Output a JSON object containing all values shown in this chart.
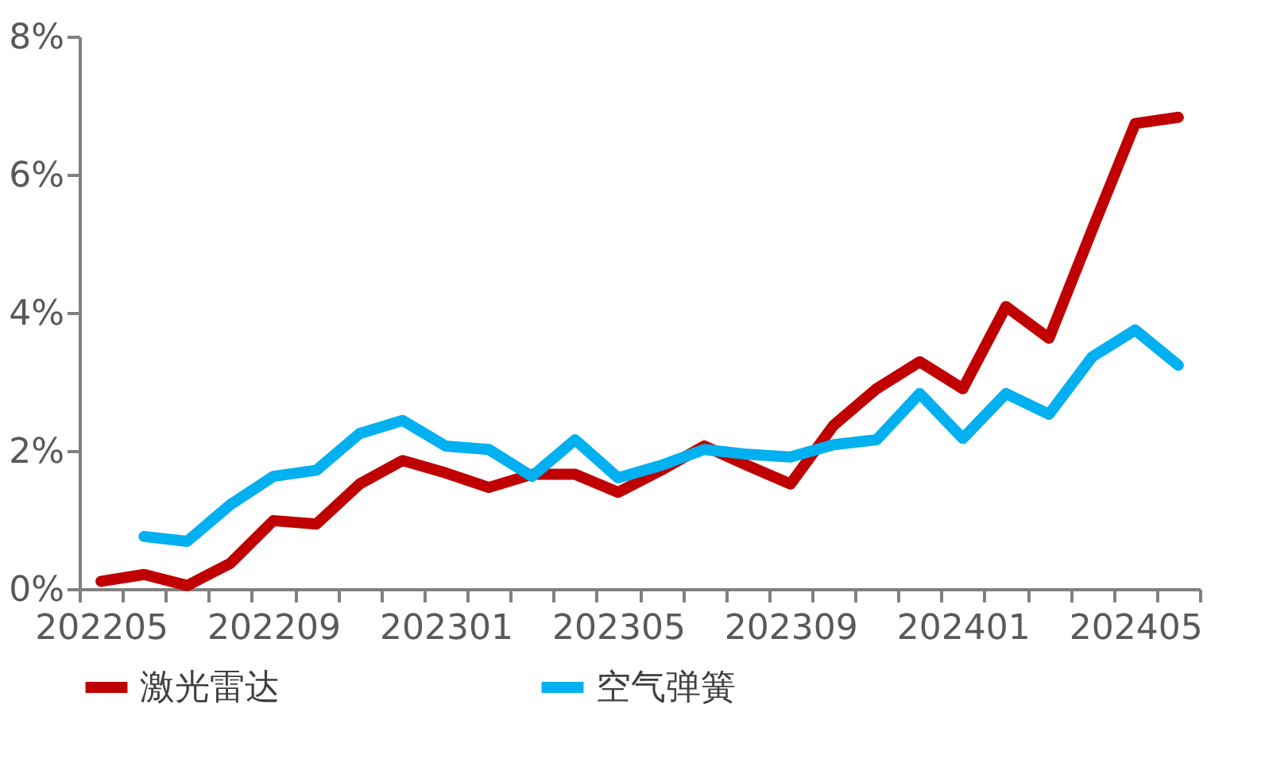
{
  "chart_data": {
    "type": "line",
    "categories": [
      "202205",
      null,
      null,
      null,
      "202209",
      null,
      null,
      null,
      "202301",
      null,
      null,
      null,
      "202305",
      null,
      null,
      null,
      "202309",
      null,
      null,
      null,
      "202401",
      null,
      null,
      null,
      "202405",
      null
    ],
    "series": [
      {
        "name": "激光雷达",
        "color": "#c00000",
        "values": [
          0.11,
          0.21,
          0.05,
          0.37,
          0.99,
          0.94,
          1.52,
          1.86,
          1.68,
          1.47,
          1.66,
          1.66,
          1.4,
          1.72,
          2.07,
          1.79,
          1.52,
          2.37,
          2.9,
          3.29,
          2.9,
          4.09,
          3.63,
          5.2,
          6.74,
          6.83
        ]
      },
      {
        "name": "空气弹簧",
        "color": "#00b0f0",
        "values": [
          null,
          0.76,
          0.69,
          1.22,
          1.63,
          1.72,
          2.25,
          2.44,
          2.07,
          2.02,
          1.63,
          2.16,
          1.61,
          1.79,
          2.02,
          1.95,
          1.91,
          2.09,
          2.16,
          2.83,
          2.18,
          2.83,
          2.53,
          3.36,
          3.75,
          3.24
        ]
      }
    ],
    "ylim": [
      0,
      8
    ],
    "yticks": [
      {
        "value": 0,
        "label": "0%"
      },
      {
        "value": 2,
        "label": "2%"
      },
      {
        "value": 4,
        "label": "4%"
      },
      {
        "value": 6,
        "label": "6%"
      },
      {
        "value": 8,
        "label": "8%"
      }
    ],
    "grid": false,
    "legend": "bottom",
    "marker": "none",
    "line_style": "solid"
  }
}
